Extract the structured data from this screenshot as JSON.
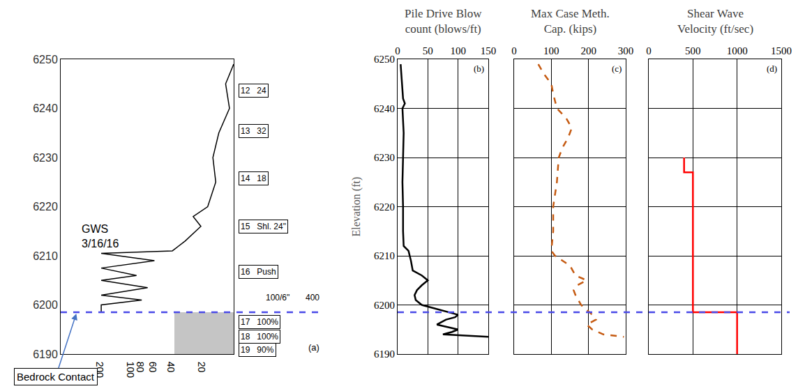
{
  "chart_data": [
    {
      "type": "line",
      "panel_label": "(a)",
      "log": "x",
      "grid": false,
      "tick_labels": true,
      "xlim": [
        500,
        10
      ],
      "xticks": [
        200,
        100,
        80,
        60,
        40,
        20
      ],
      "ylim": [
        6190,
        6250
      ],
      "yticks": [
        6190,
        6200,
        6210,
        6220,
        6230,
        6240,
        6250
      ],
      "color": "#000000",
      "line_style": "solid",
      "x": [
        10,
        12,
        11,
        14,
        16,
        15,
        18,
        25,
        21,
        30,
        40,
        200,
        60,
        200,
        90,
        200,
        70,
        200,
        80,
        200,
        200
      ],
      "y": [
        6249,
        6245,
        6240,
        6235,
        6230,
        6225,
        6220,
        6218,
        6216,
        6213,
        6211,
        6210.5,
        6209,
        6207.5,
        6206,
        6205,
        6203.5,
        6202,
        6201,
        6200,
        6198.5
      ],
      "samples": [
        {
          "number": "12",
          "result": "24",
          "elevation": 6243.6
        },
        {
          "number": "13",
          "result": "32",
          "elevation": 6235.4
        },
        {
          "number": "14",
          "result": "18",
          "elevation": 6225.7
        },
        {
          "number": "15",
          "result": "Shl. 24\"",
          "elevation": 6216
        },
        {
          "number": "16",
          "result": "Push",
          "elevation": 6206.7
        },
        {
          "number": "17",
          "result": "100%",
          "elevation": 6196.5
        },
        {
          "number": "18",
          "result": "100%",
          "elevation": 6193.6
        },
        {
          "number": "19",
          "result": "90%",
          "elevation": 6190.8
        }
      ],
      "groundwater": {
        "text": "GWS 3/16/16",
        "elevation": 6214
      },
      "refusal": [
        {
          "text": "100/6\"",
          "elevation": 6201.5
        },
        {
          "text": "400",
          "elevation": 6201.5
        }
      ],
      "bedrock_label": "Bedrock Contact",
      "bedrock_elevation": 6198.5
    },
    {
      "type": "line",
      "title": "Pile Drive Blow count (blows/ft)",
      "y_label": "Elevation (ft)",
      "panel_label": "(b)",
      "grid": true,
      "tick_labels": true,
      "color": "#000000",
      "line_style": "solid",
      "xlim": [
        0,
        150
      ],
      "xticks": [
        0,
        50,
        100,
        150
      ],
      "ylim": [
        6190,
        6250
      ],
      "yticks": [
        6190,
        6200,
        6210,
        6220,
        6230,
        6240,
        6250
      ],
      "x": [
        5,
        7,
        9,
        12,
        8,
        10,
        9,
        8,
        9,
        9,
        10,
        18,
        22,
        25,
        40,
        50,
        40,
        32,
        28,
        30,
        40,
        55,
        70,
        100,
        95,
        80,
        65,
        100,
        90,
        75,
        150
      ],
      "y": [
        6249,
        6246,
        6242,
        6241,
        6240,
        6235,
        6230,
        6225,
        6220,
        6215,
        6212,
        6211,
        6209,
        6207,
        6206,
        6205,
        6204,
        6203,
        6202,
        6201,
        6200,
        6199.5,
        6199,
        6198,
        6197.5,
        6197,
        6196,
        6195,
        6194.5,
        6194,
        6193.5
      ]
    },
    {
      "type": "line",
      "title": "Max Case Meth. Cap. (kips)",
      "panel_label": "(c)",
      "grid": true,
      "tick_labels": "x",
      "color": "#C55A11",
      "line_style": "dashed",
      "xlim": [
        0,
        300
      ],
      "xticks": [
        0,
        100,
        200,
        300
      ],
      "ylim": [
        6190,
        6250
      ],
      "yticks": [
        6190,
        6200,
        6210,
        6220,
        6230,
        6240,
        6250
      ],
      "x": [
        65,
        80,
        100,
        105,
        115,
        140,
        155,
        145,
        130,
        120,
        115,
        105,
        105,
        100,
        110,
        150,
        165,
        195,
        170,
        160,
        165,
        180,
        195,
        210,
        220,
        195,
        210,
        240,
        295
      ],
      "y": [
        6249,
        6247,
        6245,
        6243,
        6240,
        6238,
        6236,
        6234,
        6232,
        6230,
        6225,
        6220,
        6215,
        6211,
        6210,
        6208,
        6206,
        6205,
        6204,
        6203,
        6202,
        6200,
        6199,
        6198,
        6197,
        6196,
        6195,
        6194,
        6193.5
      ]
    },
    {
      "type": "line",
      "title": "Shear Wave Velocity (ft/sec)",
      "panel_label": "(d)",
      "grid": true,
      "tick_labels": "x",
      "color": "#FF0000",
      "line_style": "solid",
      "xlim": [
        0,
        1500
      ],
      "xticks": [
        0,
        500,
        1000,
        1500
      ],
      "ylim": [
        6190,
        6250
      ],
      "yticks": [
        6190,
        6200,
        6210,
        6220,
        6230,
        6240,
        6250
      ],
      "x": [
        400,
        400,
        500,
        500,
        1000,
        1000
      ],
      "y": [
        6230,
        6227,
        6227,
        6198.5,
        6198.5,
        6190
      ]
    }
  ]
}
